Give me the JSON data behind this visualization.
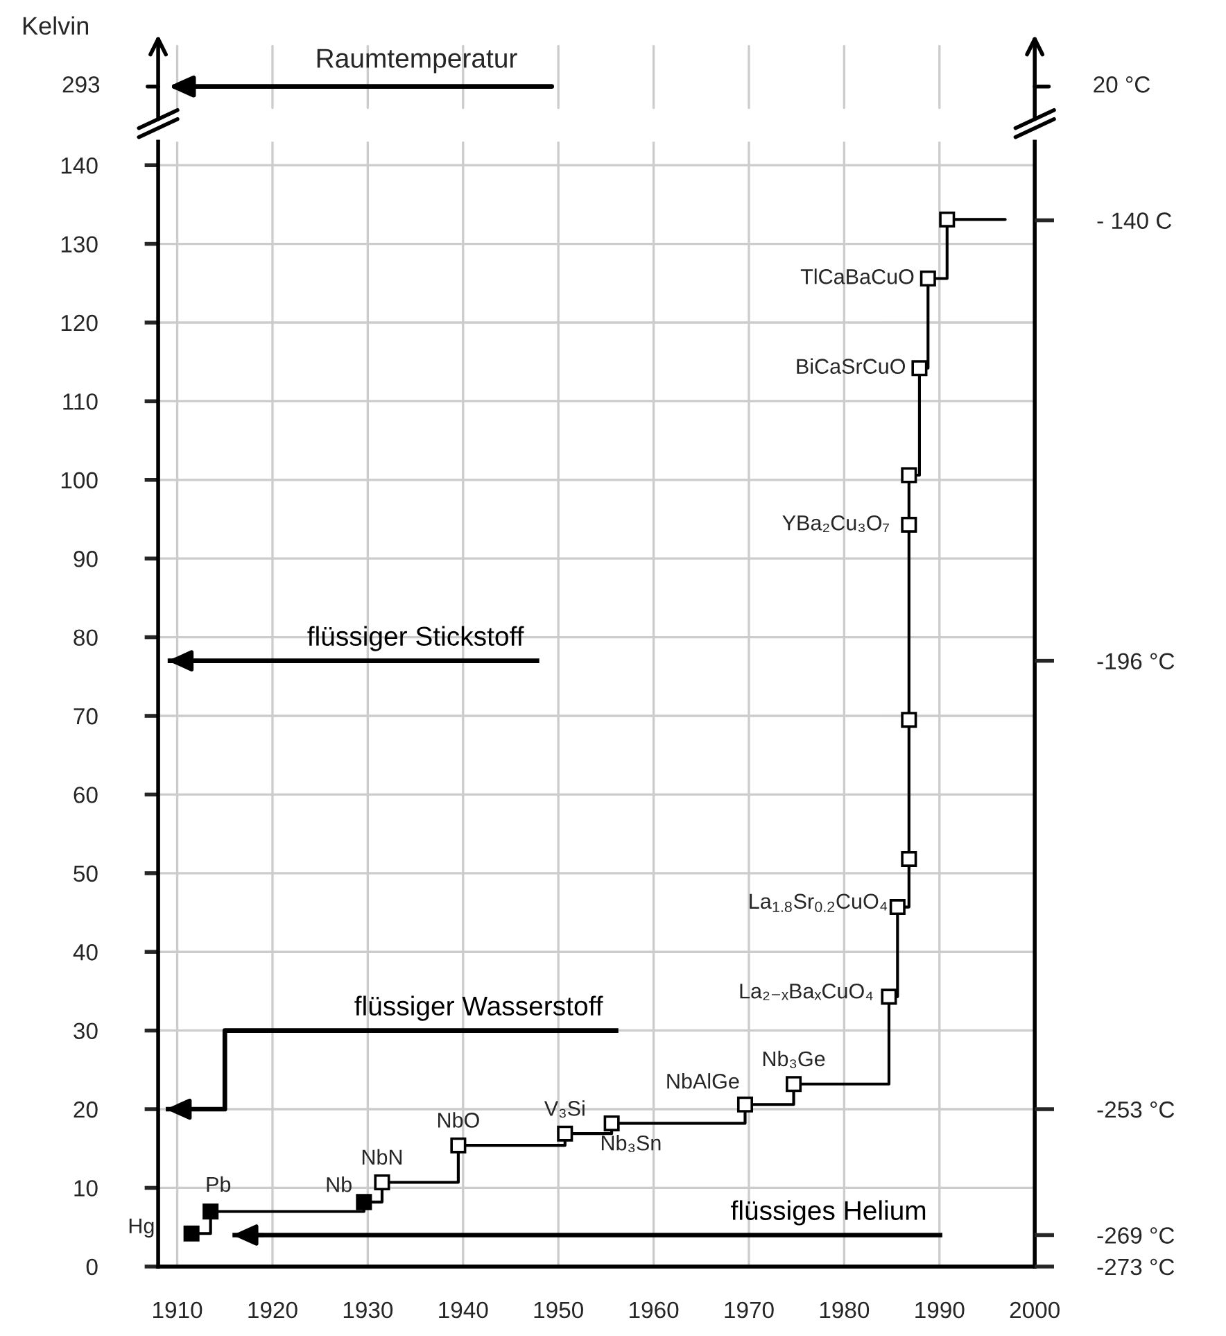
{
  "chart_data": {
    "type": "step",
    "ylabel": "Kelvin",
    "xlim": [
      1908,
      2000
    ],
    "xticks": [
      1910,
      1920,
      1930,
      1940,
      1950,
      1960,
      1970,
      1980,
      1990,
      2000
    ],
    "grid": true,
    "ylim": [
      0,
      143
    ],
    "yticks": [
      0,
      10,
      20,
      30,
      40,
      50,
      60,
      70,
      80,
      90,
      100,
      110,
      120,
      130,
      140
    ],
    "y2lim": [
      -273,
      -130
    ],
    "y2ticks": [
      {
        "value": -273,
        "label": "-273 °C"
      },
      {
        "value": -269,
        "label": "-269 °C"
      },
      {
        "value": -253,
        "label": "-253 °C"
      },
      {
        "value": -196,
        "label": "-196 °C"
      },
      {
        "value": -140,
        "label": "- 140 C"
      }
    ],
    "series": [
      {
        "color": "#000000",
        "marker": "square",
        "x": [
          1911.5,
          1913.5,
          1929.6,
          1931.5,
          1939.5,
          1950.7,
          1955.6,
          1969.6,
          1974.7,
          1984.7,
          1985.6,
          1986.8,
          1986.8,
          1986.8,
          1986.8,
          1987.9,
          1988.8,
          1990.8,
          1996.9
        ],
        "values": [
          4.2,
          7.0,
          8.2,
          10.7,
          15.4,
          16.9,
          18.2,
          20.6,
          23.2,
          34.3,
          45.7,
          51.8,
          69.5,
          94.3,
          100.6,
          114.2,
          125.6,
          133.1,
          133.1
        ],
        "colors": [
          "#000000",
          "#000000",
          "#000000",
          "#ffffff",
          "#ffffff",
          "#ffffff",
          "#ffffff",
          "#ffffff",
          "#ffffff",
          "#ffffff",
          "#ffffff",
          "#ffffff",
          "#ffffff",
          "#ffffff",
          "#ffffff",
          "#ffffff",
          "#ffffff",
          "#ffffff",
          null
        ]
      },
      {
        "type": "line",
        "name": "flüssiger Stickstoff",
        "color": "#000000",
        "x": [
          1948.0,
          1909.0
        ],
        "values": [
          77,
          77
        ]
      },
      {
        "type": "line",
        "name": "flüssiger Wasserstoff",
        "color": "#000000",
        "x": [
          1956.3,
          1915.0,
          1915.0,
          1908.8
        ],
        "values": [
          30,
          30,
          20,
          20
        ]
      },
      {
        "type": "line",
        "name": "flüssiges Helium",
        "color": "#000000",
        "x": [
          1990.3,
          1915.8
        ],
        "values": [
          4,
          4
        ]
      }
    ],
    "annotations": [
      "Raumtemperatur",
      "293",
      "20 °C",
      {
        "text": "Hg",
        "x": 1911.5,
        "y": 4.2
      },
      {
        "text": "Pb",
        "x": 1913.5,
        "y": 7.0
      },
      {
        "text": "Nb",
        "x": 1929.6,
        "y": 8.2
      },
      {
        "text": "NbN",
        "x": 1931.5,
        "y": 10.7
      },
      {
        "text": "NbO",
        "x": 1939.5,
        "y": 15.4
      },
      {
        "text": "V₃Si",
        "x": 1950.7,
        "y": 16.9
      },
      {
        "text": "Nb₃Sn",
        "x": 1955.6,
        "y": 18.2
      },
      {
        "text": "NbAlGe",
        "x": 1969.6,
        "y": 20.6
      },
      {
        "text": "Nb₃Ge",
        "x": 1974.7,
        "y": 23.2
      },
      {
        "text": "La₂₋ₓBaₓCuO₄",
        "x": 1984.7,
        "y": 34.3
      },
      {
        "text": "La$_{1.8}$Sr$_{0.2}$CuO₄",
        "x": 1985.6,
        "y": 45.7
      },
      {
        "text": "YBa₂Cu₃O₇",
        "x": 1986.8,
        "y": 94.3
      },
      {
        "text": "BiCaSrCuO",
        "x": 1987.9,
        "y": 114.2
      },
      {
        "text": "TlCaBaCuO",
        "x": 1988.8,
        "y": 125.6
      }
    ]
  }
}
